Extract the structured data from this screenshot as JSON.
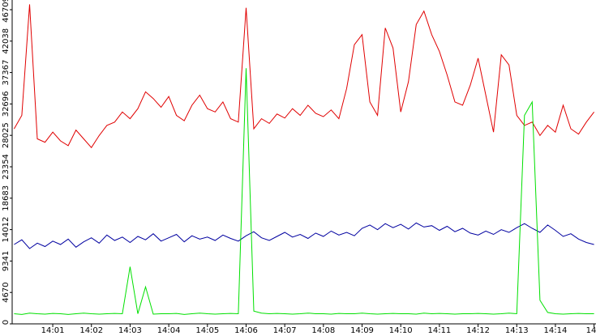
{
  "chart_data": {
    "type": "line",
    "x": [
      0,
      0.2,
      0.4,
      0.6,
      0.8,
      1,
      1.2,
      1.4,
      1.6,
      1.8,
      2,
      2.2,
      2.4,
      2.6,
      2.8,
      3,
      3.2,
      3.4,
      3.6,
      3.8,
      4,
      4.2,
      4.4,
      4.6,
      4.8,
      5,
      5.2,
      5.4,
      5.6,
      5.8,
      6,
      6.2,
      6.4,
      6.6,
      6.8,
      7,
      7.2,
      7.4,
      7.6,
      7.8,
      8,
      8.2,
      8.4,
      8.6,
      8.8,
      9,
      9.2,
      9.4,
      9.6,
      9.8,
      10,
      10.2,
      10.4,
      10.6,
      10.8,
      11,
      11.2,
      11.4,
      11.6,
      11.8,
      12,
      12.2,
      12.4,
      12.6,
      12.8,
      13,
      13.2,
      13.4,
      13.6,
      13.8,
      14,
      14.2,
      14.4,
      14.6,
      14.8,
      15
    ],
    "series": [
      {
        "color": "#e00000",
        "values": [
          29000,
          31000,
          47500,
          27500,
          27000,
          28500,
          27200,
          26500,
          28800,
          27500,
          26200,
          28000,
          29500,
          30000,
          31500,
          30500,
          32000,
          34500,
          33500,
          32200,
          33800,
          31000,
          30200,
          32500,
          34000,
          32000,
          31500,
          33000,
          30500,
          30000,
          47000,
          29000,
          30500,
          29800,
          31200,
          30600,
          32000,
          31000,
          32500,
          31300,
          30800,
          31800,
          30500,
          35000,
          41500,
          43000,
          33000,
          31000,
          44000,
          41000,
          31500,
          36000,
          44500,
          46500,
          43000,
          40500,
          37000,
          33000,
          32500,
          35500,
          39500,
          34000,
          28500,
          40000,
          38500,
          31000,
          29500,
          30000,
          28000,
          29500,
          28500,
          32500,
          29000,
          28200,
          30000,
          31500
        ]
      },
      {
        "color": "#0000a0",
        "values": [
          11800,
          12500,
          11200,
          12000,
          11500,
          12300,
          11800,
          12600,
          11400,
          12200,
          12800,
          12000,
          13200,
          12400,
          12900,
          12100,
          13000,
          12500,
          13400,
          12300,
          12800,
          13300,
          12200,
          13100,
          12600,
          12900,
          12400,
          13200,
          12700,
          12300,
          13100,
          13700,
          12800,
          12400,
          13000,
          13600,
          12900,
          13300,
          12700,
          13500,
          13000,
          13800,
          13200,
          13600,
          13100,
          14200,
          14700,
          14000,
          14900,
          14300,
          14800,
          14100,
          15000,
          14400,
          14600,
          13900,
          14500,
          13700,
          14200,
          13500,
          13200,
          13800,
          13300,
          14000,
          13600,
          14300,
          14900,
          14200,
          13600,
          14700,
          13900,
          13000,
          13400,
          12600,
          12100,
          11800
        ]
      },
      {
        "color": "#00e000",
        "values": [
          1500,
          1400,
          1600,
          1500,
          1450,
          1550,
          1500,
          1400,
          1500,
          1600,
          1500,
          1450,
          1500,
          1550,
          1500,
          8500,
          1500,
          5500,
          1450,
          1500,
          1500,
          1550,
          1400,
          1500,
          1600,
          1500,
          1450,
          1500,
          1550,
          1500,
          38000,
          1900,
          1600,
          1500,
          1550,
          1500,
          1450,
          1500,
          1600,
          1500,
          1500,
          1450,
          1550,
          1500,
          1500,
          1600,
          1500,
          1450,
          1500,
          1550,
          1500,
          1500,
          1450,
          1600,
          1500,
          1550,
          1500,
          1450,
          1500,
          1500,
          1550,
          1500,
          1450,
          1500,
          1600,
          1500,
          31000,
          33000,
          3500,
          1700,
          1500,
          1450,
          1500,
          1550,
          1500,
          1500
        ]
      }
    ],
    "xlim": [
      -0.05,
      15.05
    ],
    "xticks": [
      {
        "value": 1,
        "label": "14:01"
      },
      {
        "value": 2,
        "label": "14:02"
      },
      {
        "value": 3,
        "label": "14:03"
      },
      {
        "value": 4,
        "label": "14:04"
      },
      {
        "value": 5,
        "label": "14:05"
      },
      {
        "value": 6,
        "label": "14:06"
      },
      {
        "value": 7,
        "label": "14:07"
      },
      {
        "value": 8,
        "label": "14:08"
      },
      {
        "value": 9,
        "label": "14:09"
      },
      {
        "value": 10,
        "label": "14:10"
      },
      {
        "value": 11,
        "label": "14:11"
      },
      {
        "value": 12,
        "label": "14:12"
      },
      {
        "value": 13,
        "label": "14:13"
      },
      {
        "value": 14,
        "label": "14:14"
      },
      {
        "value": 15,
        "label": "14"
      }
    ],
    "ylim": [
      0,
      48150
    ],
    "yticks": [
      0,
      4670,
      9341,
      14012,
      18683,
      23354,
      28025,
      32696,
      37367,
      42038,
      46709
    ]
  }
}
